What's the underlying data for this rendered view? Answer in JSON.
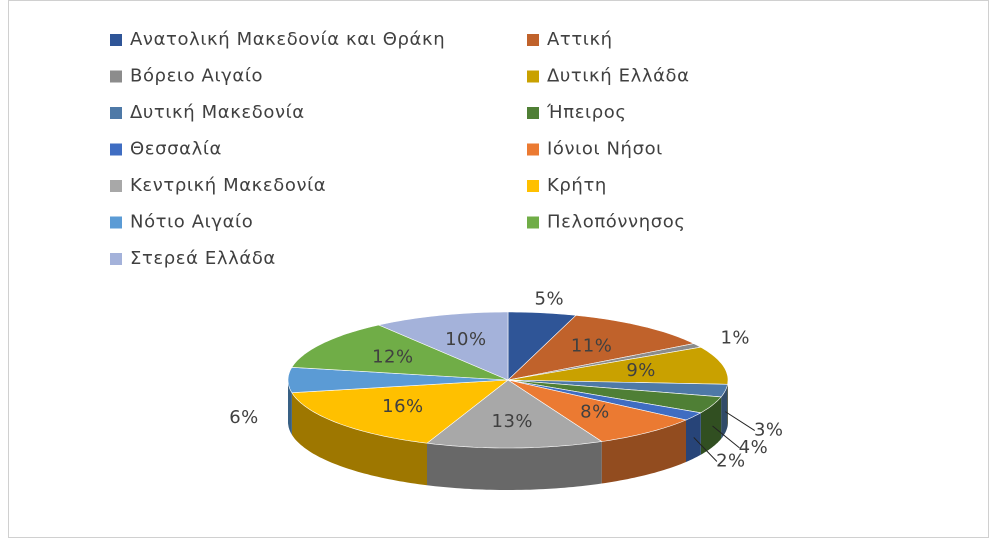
{
  "chart_data": {
    "type": "pie",
    "categories": [
      "Ανατολική Μακεδονία και Θράκη",
      "Αττική",
      "Βόρειο Αιγαίο",
      "Δυτική Ελλάδα",
      "Δυτική Μακεδονία",
      "Ήπειρος",
      "Θεσσαλία",
      "Ιόνιοι Νήσοι",
      "Κεντρική Μακεδονία",
      "Κρήτη",
      "Νότιο Αιγαίο",
      "Πελοπόννησος",
      "Στερεά Ελλάδα"
    ],
    "values": [
      5,
      11,
      1,
      9,
      3,
      4,
      2,
      8,
      13,
      16,
      6,
      12,
      10
    ],
    "value_labels": [
      "5%",
      "11%",
      "1%",
      "9%",
      "3%",
      "4%",
      "2%",
      "8%",
      "13%",
      "16%",
      "6%",
      "12%",
      "10%"
    ],
    "colors": [
      "#2F5597",
      "#C0622B",
      "#8C8C8C",
      "#C9A100",
      "#4E79A7",
      "#4F7F35",
      "#3F6DC2",
      "#EB7A32",
      "#A8A8A8",
      "#FFC000",
      "#5B9BD5",
      "#70AD47",
      "#A4B2DA"
    ],
    "legend": "top"
  }
}
